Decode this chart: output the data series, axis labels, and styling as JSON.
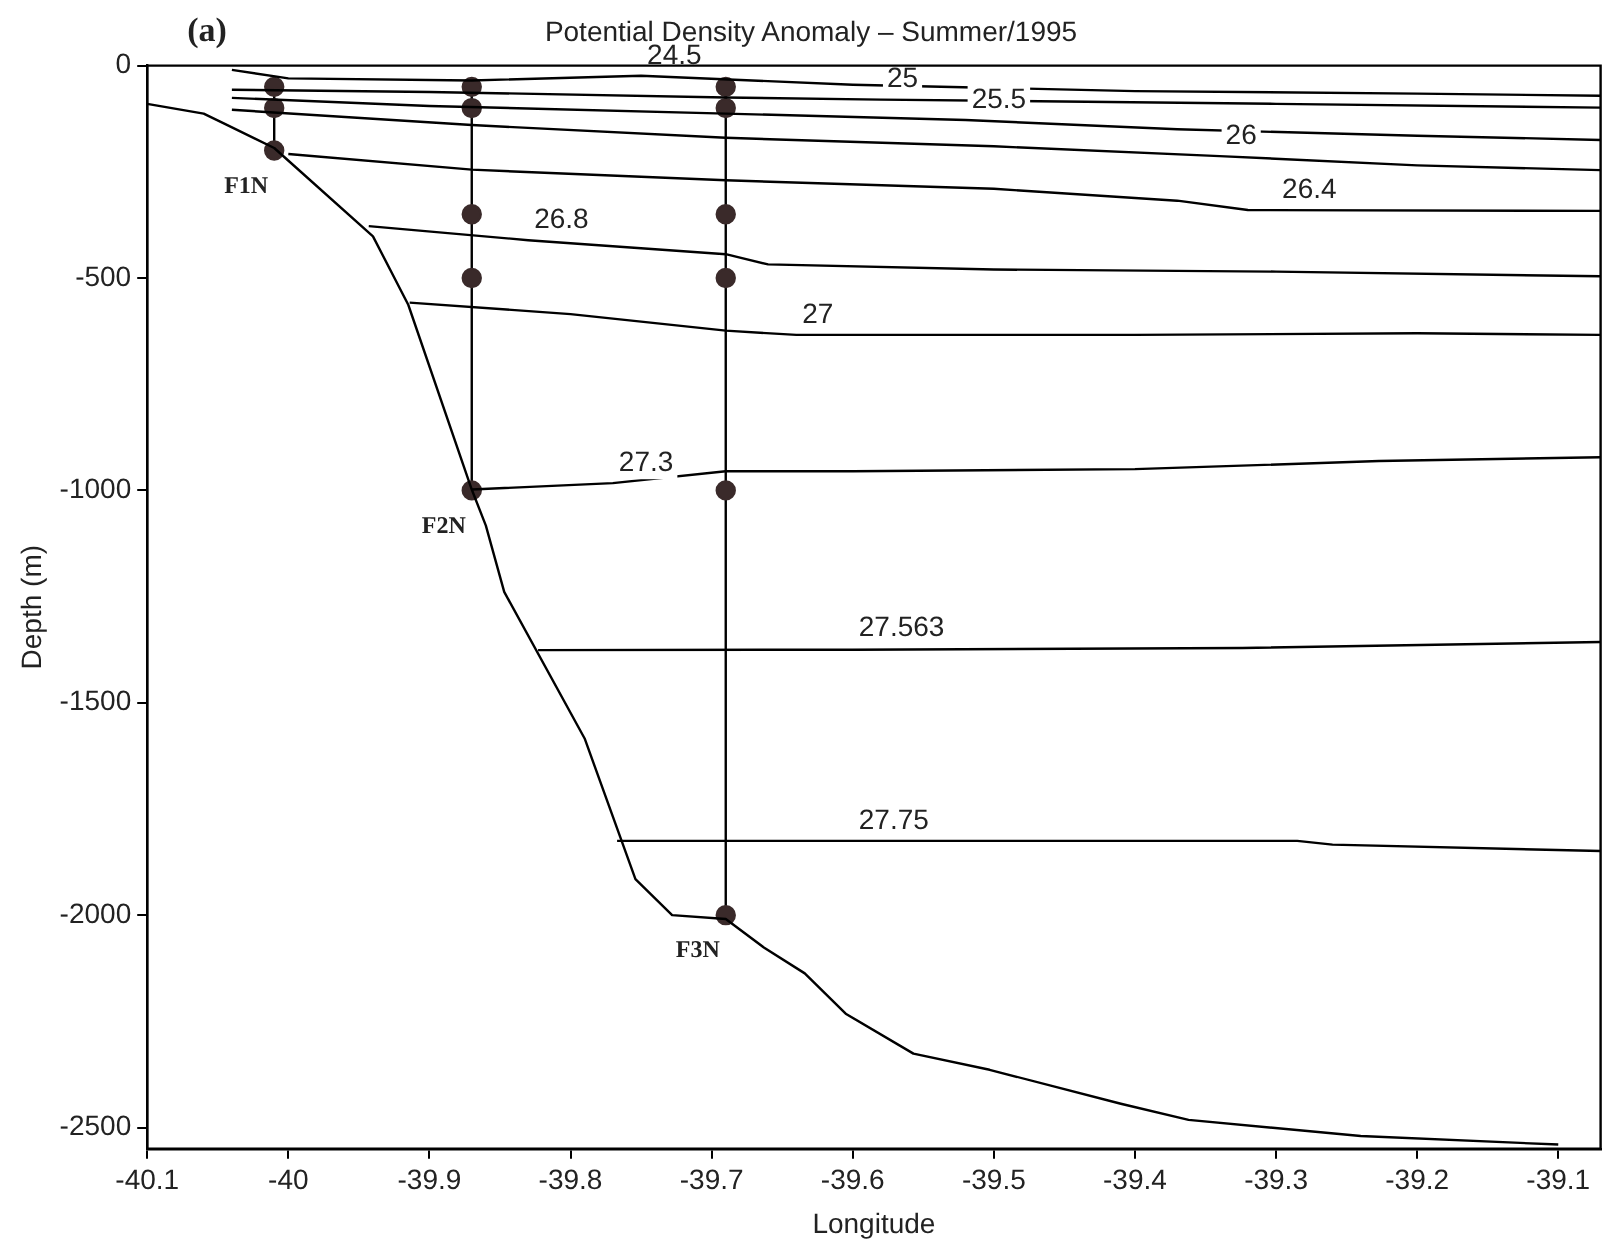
{
  "chart_data": {
    "type": "line",
    "title": "Potential Density Anomaly – Summer/1995",
    "xlabel": "Longitude",
    "ylabel": "Depth (m)",
    "xlim": [
      -40.1,
      -39.07
    ],
    "xticks": [
      -40.1,
      -40,
      -39.9,
      -39.8,
      -39.7,
      -39.6,
      -39.5,
      -39.4,
      -39.3,
      -39.2,
      -39.1
    ],
    "ylim": [
      -2550,
      0
    ],
    "yticks": [
      0,
      -500,
      -1000,
      -1500,
      -2000,
      -2500
    ],
    "grid": false,
    "legend": false,
    "marker": "none",
    "annotations": [
      "(a)",
      {
        "text": "24.5",
        "x": -39.75,
        "y": -24
      },
      {
        "text": "25",
        "x": -39.58,
        "y": -80
      },
      {
        "text": "25.5",
        "x": -39.52,
        "y": -128
      },
      {
        "text": "26",
        "x": -39.34,
        "y": -213
      },
      {
        "text": "26.4",
        "x": -39.3,
        "y": -340
      },
      {
        "text": "26.8",
        "x": -39.83,
        "y": -411
      },
      {
        "text": "27",
        "x": -39.64,
        "y": -634
      },
      {
        "text": "27.3",
        "x": -39.77,
        "y": -983
      },
      {
        "text": "27.563",
        "x": -39.6,
        "y": -1371
      },
      {
        "text": "27.75",
        "x": -39.6,
        "y": -1825
      }
    ],
    "series": [
      {
        "type": "line",
        "color": "#000000",
        "x": [
          -40.1,
          -40.06,
          -40.045,
          -40.01,
          -39.94,
          -39.915,
          -39.87,
          -39.86,
          -39.847,
          -39.79,
          -39.754,
          -39.728,
          -39.69,
          -39.663,
          -39.634,
          -39.605,
          -39.557,
          -39.503,
          -39.41,
          -39.362,
          -39.24,
          -39.1
        ],
        "values": [
          -90,
          -113,
          -137,
          -194,
          -402,
          -563,
          -998,
          -1083,
          -1239,
          -1584,
          -1915,
          -2000,
          -2009,
          -2076,
          -2137,
          -2232,
          -2326,
          -2364,
          -2444,
          -2482,
          -2520,
          -2540
        ]
      },
      {
        "type": "line",
        "color": "#000000",
        "x": [
          -40.04,
          -40.0,
          -39.87,
          -39.75,
          -39.6,
          -39.4,
          -39.2,
          -39.07
        ],
        "values": [
          -10,
          -30,
          -35,
          -24,
          -45,
          -60,
          -66,
          -71
        ]
      },
      {
        "type": "line",
        "color": "#000000",
        "x": [
          -40.04,
          -39.9,
          -39.69,
          -39.58,
          -39.3,
          -39.07
        ],
        "values": [
          -57,
          -62,
          -75,
          -80,
          -90,
          -99
        ]
      },
      {
        "type": "line",
        "color": "#000000",
        "x": [
          -40.04,
          -39.9,
          -39.69,
          -39.52,
          -39.37,
          -39.2,
          -39.07
        ],
        "values": [
          -76,
          -95,
          -113,
          -128,
          -150,
          -165,
          -175
        ]
      },
      {
        "type": "line",
        "color": "#000000",
        "x": [
          -40.04,
          -39.87,
          -39.69,
          -39.5,
          -39.34,
          -39.2,
          -39.07
        ],
        "values": [
          -104,
          -140,
          -170,
          -190,
          -213,
          -235,
          -246
        ]
      },
      {
        "type": "line",
        "color": "#000000",
        "x": [
          -40.0,
          -39.87,
          -39.69,
          -39.5,
          -39.37,
          -39.32,
          -39.07
        ],
        "values": [
          -208,
          -245,
          -270,
          -290,
          -318,
          -340,
          -342
        ]
      },
      {
        "type": "line",
        "color": "#000000",
        "x": [
          -39.943,
          -39.83,
          -39.69,
          -39.66,
          -39.5,
          -39.3,
          -39.07
        ],
        "values": [
          -378,
          -411,
          -444,
          -468,
          -480,
          -485,
          -496
        ]
      },
      {
        "type": "line",
        "color": "#000000",
        "x": [
          -39.914,
          -39.8,
          -39.69,
          -39.64,
          -39.4,
          -39.2,
          -39.07
        ],
        "values": [
          -558,
          -585,
          -624,
          -634,
          -634,
          -630,
          -634
        ]
      },
      {
        "type": "line",
        "color": "#000000",
        "x": [
          -39.87,
          -39.77,
          -39.69,
          -39.6,
          -39.4,
          -39.227,
          -39.07
        ],
        "values": [
          -998,
          -983,
          -955,
          -955,
          -950,
          -931,
          -922
        ]
      },
      {
        "type": "line",
        "color": "#000000",
        "x": [
          -39.823,
          -39.6,
          -39.324,
          -39.07
        ],
        "values": [
          -1376,
          -1375,
          -1371,
          -1357
        ]
      },
      {
        "type": "line",
        "color": "#000000",
        "x": [
          -39.767,
          -39.5,
          -39.285,
          -39.26,
          -39.07
        ],
        "values": [
          -1825,
          -1825,
          -1825,
          -1834,
          -1849
        ]
      },
      {
        "type": "line",
        "name": "F1N",
        "color": "#3a2a2a",
        "marker": "circle",
        "x": [
          -40.01,
          -40.01,
          -40.01
        ],
        "values": [
          -50,
          -100,
          -200
        ]
      },
      {
        "type": "line",
        "name": "F2N",
        "color": "#3a2a2a",
        "marker": "circle",
        "x": [
          -39.87,
          -39.87,
          -39.87,
          -39.87,
          -39.87
        ],
        "values": [
          -50,
          -100,
          -350,
          -500,
          -1000
        ]
      },
      {
        "type": "line",
        "name": "F3N",
        "color": "#3a2a2a",
        "marker": "circle",
        "x": [
          -39.69,
          -39.69,
          -39.69,
          -39.69,
          -39.69,
          -39.69
        ],
        "values": [
          -50,
          -100,
          -350,
          -500,
          -1000,
          -2000
        ]
      }
    ]
  }
}
